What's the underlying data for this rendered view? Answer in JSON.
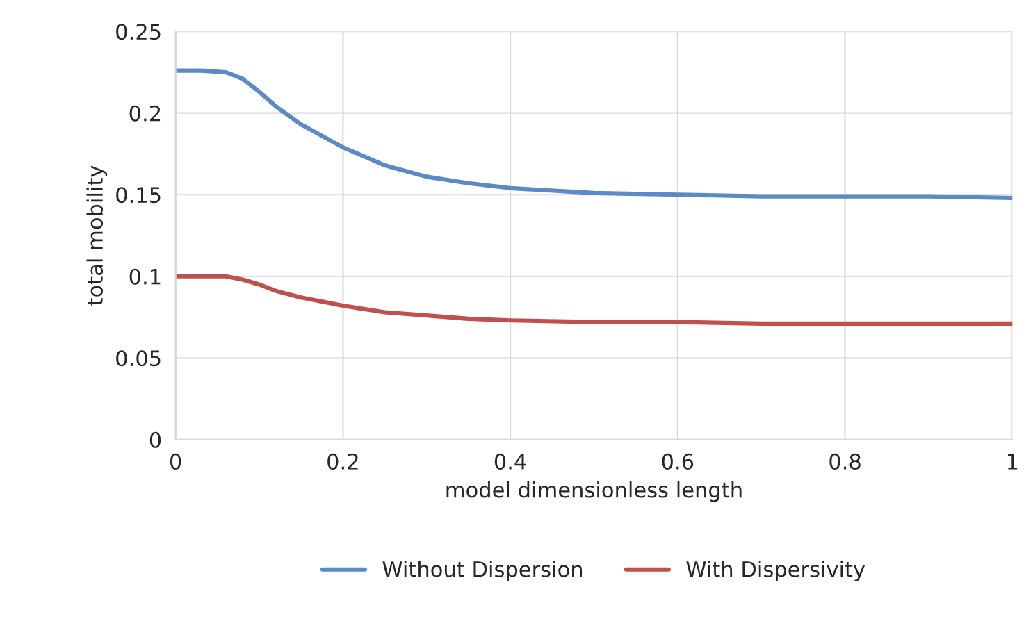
{
  "chart_data": {
    "type": "line",
    "xlabel": "model dimensionless length",
    "ylabel": "total mobility",
    "xlim": [
      0,
      1
    ],
    "xticks": [
      0,
      0.2,
      0.4,
      0.6,
      0.8,
      1
    ],
    "ylim": [
      0,
      0.25
    ],
    "yticks": [
      0,
      0.05,
      0.1,
      0.15,
      0.2,
      0.25
    ],
    "grid": true,
    "legend": "bottom",
    "line_style": "solid",
    "series": [
      {
        "name": "Without Dispersion",
        "color": "#5b8ac6",
        "x": [
          0,
          0.03,
          0.06,
          0.08,
          0.1,
          0.12,
          0.15,
          0.2,
          0.25,
          0.3,
          0.35,
          0.4,
          0.5,
          0.6,
          0.7,
          0.8,
          0.9,
          1
        ],
        "values": [
          0.226,
          0.226,
          0.225,
          0.221,
          0.213,
          0.204,
          0.193,
          0.179,
          0.168,
          0.161,
          0.157,
          0.154,
          0.151,
          0.15,
          0.149,
          0.149,
          0.149,
          0.148
        ]
      },
      {
        "name": "With Dispersivity",
        "color": "#c0504d",
        "x": [
          0,
          0.03,
          0.06,
          0.08,
          0.1,
          0.12,
          0.15,
          0.2,
          0.25,
          0.3,
          0.35,
          0.4,
          0.5,
          0.6,
          0.7,
          0.8,
          0.9,
          1
        ],
        "values": [
          0.1,
          0.1,
          0.1,
          0.098,
          0.095,
          0.091,
          0.087,
          0.082,
          0.078,
          0.076,
          0.074,
          0.073,
          0.072,
          0.072,
          0.071,
          0.071,
          0.071,
          0.071
        ]
      }
    ]
  }
}
